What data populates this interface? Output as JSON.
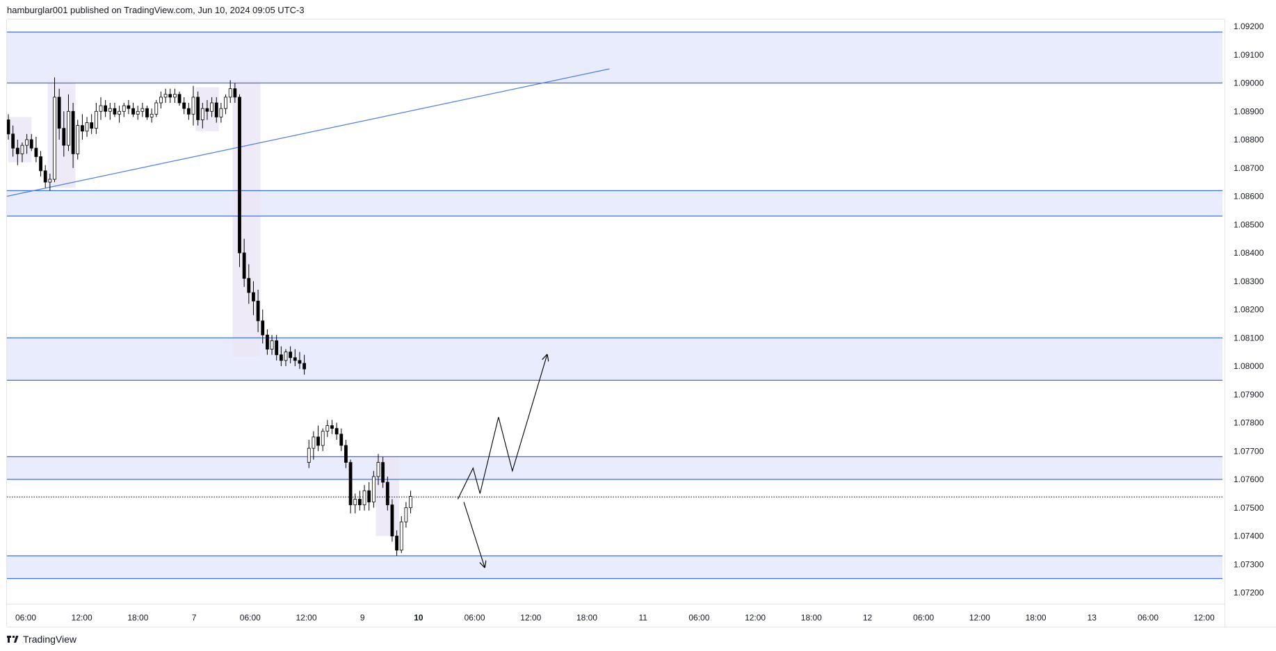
{
  "header": {
    "published_text": "hamburglar001 published on TradingView.com, Jun 10, 2024 09:05 UTC-3"
  },
  "footer": {
    "brand": "TradingView",
    "logo_icon": "tradingview-logo-icon"
  },
  "colors": {
    "zone_fill": "#e8ecfc",
    "zone_line": "#3d6fe0",
    "trend_line": "#4c7ee8",
    "session_box": "#ebe6f6",
    "candle": "#000000",
    "axis_text": "#131722"
  },
  "chart_data": {
    "type": "candlestick",
    "symbol_pair_hint": "",
    "y_axis": {
      "ylim": [
        1.0715,
        1.0925
      ],
      "ticks": [
        "1.09200",
        "1.09100",
        "1.09000",
        "1.08900",
        "1.08800",
        "1.08700",
        "1.08600",
        "1.08500",
        "1.08400",
        "1.08300",
        "1.08200",
        "1.08100",
        "1.08000",
        "1.07900",
        "1.07800",
        "1.07700",
        "1.07600",
        "1.07500",
        "1.07400",
        "1.07300",
        "1.07200"
      ]
    },
    "x_axis": {
      "ticks": [
        {
          "label": "06:00",
          "bold": false
        },
        {
          "label": "12:00",
          "bold": false
        },
        {
          "label": "18:00",
          "bold": false
        },
        {
          "label": "7",
          "bold": false
        },
        {
          "label": "06:00",
          "bold": false
        },
        {
          "label": "12:00",
          "bold": false
        },
        {
          "label": "9",
          "bold": false
        },
        {
          "label": "10",
          "bold": true
        },
        {
          "label": "06:00",
          "bold": false
        },
        {
          "label": "12:00",
          "bold": false
        },
        {
          "label": "18:00",
          "bold": false
        },
        {
          "label": "11",
          "bold": false
        },
        {
          "label": "06:00",
          "bold": false
        },
        {
          "label": "12:00",
          "bold": false
        },
        {
          "label": "18:00",
          "bold": false
        },
        {
          "label": "12",
          "bold": false
        },
        {
          "label": "06:00",
          "bold": false
        },
        {
          "label": "12:00",
          "bold": false
        },
        {
          "label": "18:00",
          "bold": false
        },
        {
          "label": "13",
          "bold": false
        },
        {
          "label": "06:00",
          "bold": false
        },
        {
          "label": "12:00",
          "bold": false
        }
      ]
    },
    "zones": [
      {
        "top": 1.0918,
        "bottom": 1.09
      },
      {
        "top": 1.0862,
        "bottom": 1.0853
      },
      {
        "top": 1.081,
        "bottom": 1.0795
      },
      {
        "top": 1.0768,
        "bottom": 1.076
      },
      {
        "top": 1.0733,
        "bottom": 1.0725
      }
    ],
    "last_price": 1.07538,
    "trend_line": {
      "from": [
        0,
        1.086
      ],
      "to": [
        130,
        1.0905
      ]
    },
    "session_boxes": [
      {
        "x0": 0,
        "x1": 5,
        "top": 1.0888,
        "bottom": 1.0872
      },
      {
        "x0": 8.5,
        "x1": 14.5,
        "top": 1.09015,
        "bottom": 1.0863
      },
      {
        "x0": 40.5,
        "x1": 45.5,
        "top": 1.08985,
        "bottom": 1.0883
      },
      {
        "x0": 48.5,
        "x1": 54.5,
        "top": 1.0901,
        "bottom": 1.08035
      },
      {
        "x0": 79.5,
        "x1": 84.5,
        "top": 1.0768,
        "bottom": 1.074
      }
    ],
    "candles": [
      [
        1.0887,
        1.0889,
        1.088,
        1.0882
      ],
      [
        1.0882,
        1.0885,
        1.0874,
        1.0877
      ],
      [
        1.0877,
        1.088,
        1.0871,
        1.0875
      ],
      [
        1.0875,
        1.0879,
        1.0872,
        1.0878
      ],
      [
        1.0878,
        1.0882,
        1.0875,
        1.088
      ],
      [
        1.088,
        1.0882,
        1.0876,
        1.0877
      ],
      [
        1.0877,
        1.0881,
        1.0872,
        1.0874
      ],
      [
        1.0874,
        1.0876,
        1.0867,
        1.0869
      ],
      [
        1.0869,
        1.0871,
        1.0863,
        1.0865
      ],
      [
        1.0865,
        1.0868,
        1.0862,
        1.0866
      ],
      [
        1.0866,
        1.0902,
        1.0865,
        1.0895
      ],
      [
        1.0895,
        1.0898,
        1.088,
        1.0884
      ],
      [
        1.0884,
        1.089,
        1.0874,
        1.0878
      ],
      [
        1.0878,
        1.0896,
        1.0876,
        1.089
      ],
      [
        1.089,
        1.0893,
        1.087,
        1.0875
      ],
      [
        1.0875,
        1.0887,
        1.0873,
        1.0885
      ],
      [
        1.0885,
        1.0889,
        1.088,
        1.0883
      ],
      [
        1.0883,
        1.0888,
        1.0881,
        1.0886
      ],
      [
        1.0886,
        1.0889,
        1.0882,
        1.0884
      ],
      [
        1.0884,
        1.0893,
        1.0882,
        1.089
      ],
      [
        1.089,
        1.0895,
        1.0887,
        1.0892
      ],
      [
        1.0892,
        1.0894,
        1.0888,
        1.089
      ],
      [
        1.089,
        1.0893,
        1.0887,
        1.0891
      ],
      [
        1.0891,
        1.0893,
        1.0888,
        1.0889
      ],
      [
        1.0889,
        1.0892,
        1.0886,
        1.089
      ],
      [
        1.089,
        1.0893,
        1.0888,
        1.0892
      ],
      [
        1.0892,
        1.0894,
        1.0889,
        1.0891
      ],
      [
        1.0891,
        1.0893,
        1.0888,
        1.0889
      ],
      [
        1.0889,
        1.0892,
        1.0887,
        1.089
      ],
      [
        1.089,
        1.0893,
        1.0888,
        1.0891
      ],
      [
        1.0891,
        1.0892,
        1.0887,
        1.0888
      ],
      [
        1.0888,
        1.0891,
        1.0886,
        1.0889
      ],
      [
        1.0889,
        1.0894,
        1.0888,
        1.0893
      ],
      [
        1.0893,
        1.0897,
        1.0891,
        1.0895
      ],
      [
        1.0895,
        1.0898,
        1.0893,
        1.0896
      ],
      [
        1.0896,
        1.0898,
        1.0893,
        1.0895
      ],
      [
        1.0895,
        1.0898,
        1.0893,
        1.0896
      ],
      [
        1.0896,
        1.0897,
        1.0892,
        1.0893
      ],
      [
        1.0893,
        1.0895,
        1.0889,
        1.0891
      ],
      [
        1.0891,
        1.0893,
        1.0887,
        1.0889
      ],
      [
        1.0889,
        1.0899,
        1.0885,
        1.0895
      ],
      [
        1.0895,
        1.0897,
        1.0885,
        1.0887
      ],
      [
        1.0887,
        1.0893,
        1.0884,
        1.0891
      ],
      [
        1.0891,
        1.0894,
        1.0887,
        1.089
      ],
      [
        1.089,
        1.0895,
        1.0888,
        1.0893
      ],
      [
        1.0893,
        1.0895,
        1.0886,
        1.0888
      ],
      [
        1.0888,
        1.0893,
        1.0886,
        1.0891
      ],
      [
        1.0891,
        1.0896,
        1.0889,
        1.0895
      ],
      [
        1.0895,
        1.0901,
        1.0893,
        1.0898
      ],
      [
        1.0898,
        1.09,
        1.0893,
        1.0895
      ],
      [
        1.0895,
        1.0896,
        1.0835,
        1.084
      ],
      [
        1.084,
        1.0845,
        1.0828,
        1.0831
      ],
      [
        1.0831,
        1.0836,
        1.0822,
        1.0826
      ],
      [
        1.0826,
        1.083,
        1.0818,
        1.0823
      ],
      [
        1.0823,
        1.0827,
        1.0812,
        1.0816
      ],
      [
        1.0816,
        1.082,
        1.0808,
        1.0811
      ],
      [
        1.0811,
        1.0813,
        1.0804,
        1.0806
      ],
      [
        1.0806,
        1.0811,
        1.0804,
        1.0809
      ],
      [
        1.0809,
        1.0811,
        1.0802,
        1.0804
      ],
      [
        1.0804,
        1.0807,
        1.08,
        1.0802
      ],
      [
        1.0802,
        1.0806,
        1.08,
        1.0805
      ],
      [
        1.0805,
        1.0807,
        1.0801,
        1.0803
      ],
      [
        1.0803,
        1.0806,
        1.08,
        1.0802
      ],
      [
        1.0802,
        1.0805,
        1.0799,
        1.0801
      ],
      [
        1.0801,
        1.0804,
        1.0797,
        1.0799
      ],
      [
        1.0766,
        1.0774,
        1.0764,
        1.0771
      ],
      [
        1.0771,
        1.0777,
        1.0767,
        1.0775
      ],
      [
        1.0775,
        1.0779,
        1.077,
        1.0772
      ],
      [
        1.0772,
        1.0778,
        1.077,
        1.0777
      ],
      [
        1.0777,
        1.0781,
        1.0775,
        1.0779
      ],
      [
        1.0779,
        1.0781,
        1.0776,
        1.0778
      ],
      [
        1.0778,
        1.078,
        1.0774,
        1.0776
      ],
      [
        1.0776,
        1.0778,
        1.077,
        1.0772
      ],
      [
        1.0772,
        1.0774,
        1.0764,
        1.0766
      ],
      [
        1.0766,
        1.0767,
        1.0748,
        1.0751
      ],
      [
        1.0751,
        1.0755,
        1.0748,
        1.0753
      ],
      [
        1.0753,
        1.0756,
        1.0749,
        1.0751
      ],
      [
        1.0751,
        1.0758,
        1.0749,
        1.0756
      ],
      [
        1.0756,
        1.0759,
        1.0749,
        1.0752
      ],
      [
        1.0752,
        1.0763,
        1.075,
        1.0761
      ],
      [
        1.0761,
        1.0769,
        1.0758,
        1.0766
      ],
      [
        1.0766,
        1.0768,
        1.0757,
        1.0759
      ],
      [
        1.0759,
        1.0761,
        1.0749,
        1.0751
      ],
      [
        1.0751,
        1.0753,
        1.0738,
        1.074
      ],
      [
        1.074,
        1.0742,
        1.0733,
        1.0735
      ],
      [
        1.0735,
        1.0747,
        1.0734,
        1.0745
      ],
      [
        1.0745,
        1.0752,
        1.0743,
        1.075
      ],
      [
        1.075,
        1.0756,
        1.0748,
        1.0754
      ]
    ],
    "projection_up": [
      [
        97.2,
        1.0753
      ],
      [
        100.5,
        1.0764
      ],
      [
        102,
        1.0755
      ],
      [
        106,
        1.0782
      ],
      [
        109,
        1.0763
      ],
      [
        116.5,
        1.0804
      ]
    ],
    "projection_down": [
      [
        98.5,
        1.0752
      ],
      [
        103,
        1.0729
      ]
    ]
  }
}
